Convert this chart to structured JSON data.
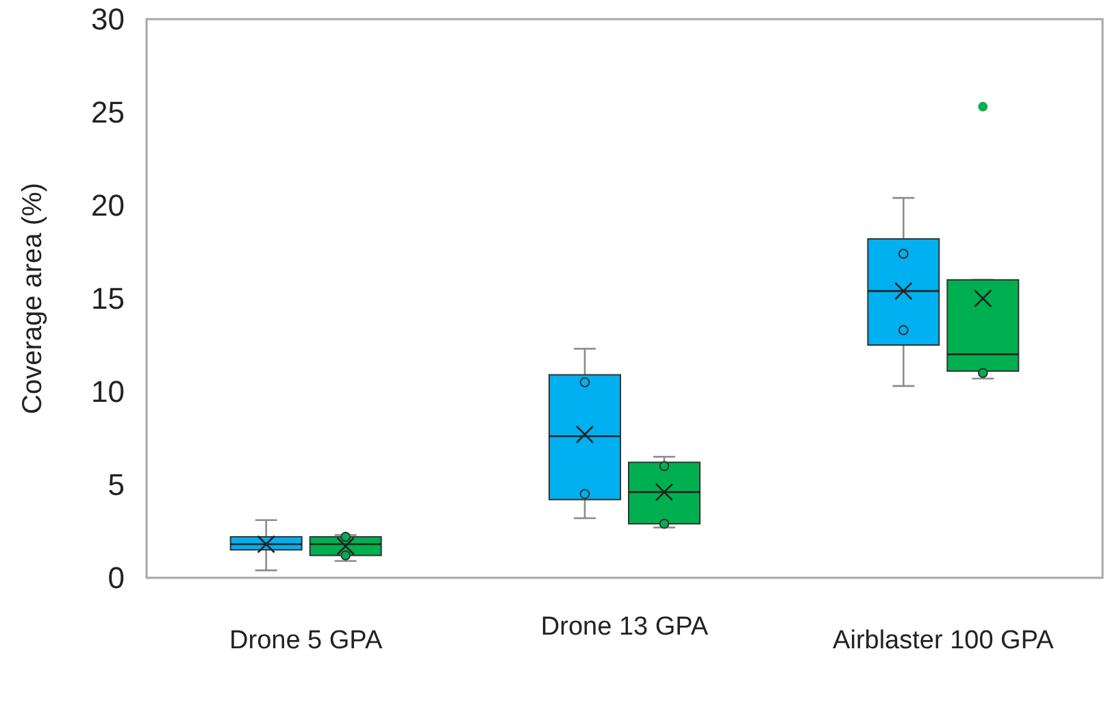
{
  "chart_data": {
    "type": "box",
    "ylabel": "Coverage area (%)",
    "categories": [
      "Drone 5 GPA",
      "Drone 13 GPA",
      "Airblaster 100 GPA"
    ],
    "ylim": [
      0,
      30
    ],
    "yticks": [
      0,
      5,
      10,
      15,
      20,
      25,
      30
    ],
    "grid": false,
    "series": [
      {
        "color": "#00b0f0",
        "boxes": [
          {
            "low": 0.4,
            "q1": 1.5,
            "median": 1.8,
            "q3": 2.2,
            "high": 3.1,
            "mean": 1.8
          },
          {
            "low": 3.2,
            "q1": 4.2,
            "median": 7.6,
            "q3": 10.9,
            "high": 12.3,
            "mean": 7.7
          },
          {
            "low": 10.3,
            "q1": 12.5,
            "median": 15.4,
            "q3": 18.2,
            "high": 20.4,
            "mean": 15.4
          }
        ]
      },
      {
        "color": "#00b050",
        "boxes": [
          {
            "low": 0.9,
            "q1": 1.2,
            "median": 1.8,
            "q3": 2.2,
            "high": 2.3,
            "mean": 1.7
          },
          {
            "low": 2.7,
            "q1": 2.9,
            "median": 4.6,
            "q3": 6.2,
            "high": 6.5,
            "mean": 4.6
          },
          {
            "low": 10.7,
            "q1": 11.1,
            "median": 12.0,
            "q3": 16.0,
            "high": 16.0,
            "mean": 15.0,
            "outliers": [
              25.3
            ]
          }
        ]
      },
      {
        "type": "scatter",
        "color": "#00b0f0",
        "marker": "circle",
        "x": [
          "Drone 13 GPA",
          "Drone 13 GPA",
          "Airblaster 100 GPA",
          "Airblaster 100 GPA"
        ],
        "values": [
          10.5,
          4.5,
          17.4,
          13.3
        ]
      },
      {
        "type": "scatter",
        "color": "#00b050",
        "marker": "circle",
        "x": [
          "Drone 5 GPA",
          "Drone 5 GPA",
          "Drone 13 GPA",
          "Drone 13 GPA",
          "Airblaster 100 GPA"
        ],
        "values": [
          2.2,
          1.2,
          6.0,
          2.9,
          11.0
        ]
      }
    ]
  }
}
